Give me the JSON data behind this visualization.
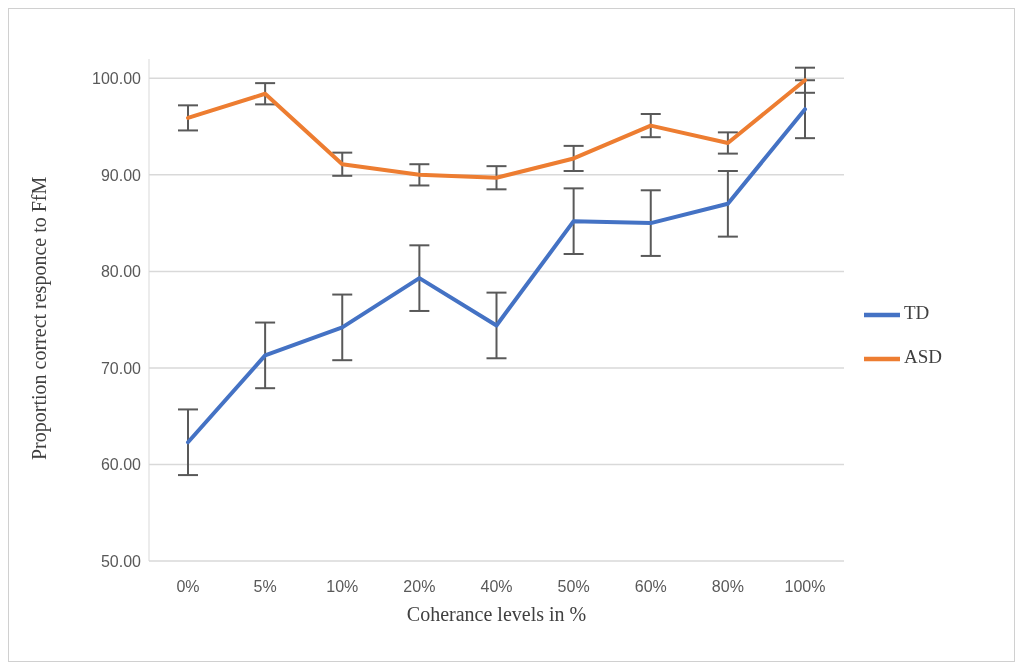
{
  "chart_data": {
    "type": "line",
    "xlabel": "Coherance levels in %",
    "ylabel": "Proportion correct responce to FfM",
    "categories": [
      "0%",
      "5%",
      "10%",
      "20%",
      "40%",
      "50%",
      "60%",
      "80%",
      "100%"
    ],
    "series": [
      {
        "name": "TD",
        "color": "#4472c4",
        "values": [
          62.3,
          71.3,
          74.2,
          79.3,
          74.4,
          85.2,
          85.0,
          87.0,
          96.8
        ],
        "errors": [
          3.4,
          3.4,
          3.4,
          3.4,
          3.4,
          3.4,
          3.4,
          3.4,
          3.0
        ]
      },
      {
        "name": "ASD",
        "color": "#ed7d31",
        "values": [
          95.9,
          98.4,
          91.1,
          90.0,
          89.7,
          91.7,
          95.1,
          93.3,
          99.8
        ],
        "errors": [
          1.3,
          1.1,
          1.2,
          1.1,
          1.2,
          1.3,
          1.2,
          1.1,
          1.3
        ]
      }
    ],
    "ylim": [
      50,
      102
    ],
    "yticks": [
      {
        "value": 50,
        "label": "50.00"
      },
      {
        "value": 60,
        "label": "60.00"
      },
      {
        "value": 70,
        "label": "70.00"
      },
      {
        "value": 80,
        "label": "80.00"
      },
      {
        "value": 90,
        "label": "90.00"
      },
      {
        "value": 100,
        "label": "100.00"
      }
    ],
    "grid": "y",
    "legend": "right",
    "marker": "none",
    "line_style": "solid"
  }
}
